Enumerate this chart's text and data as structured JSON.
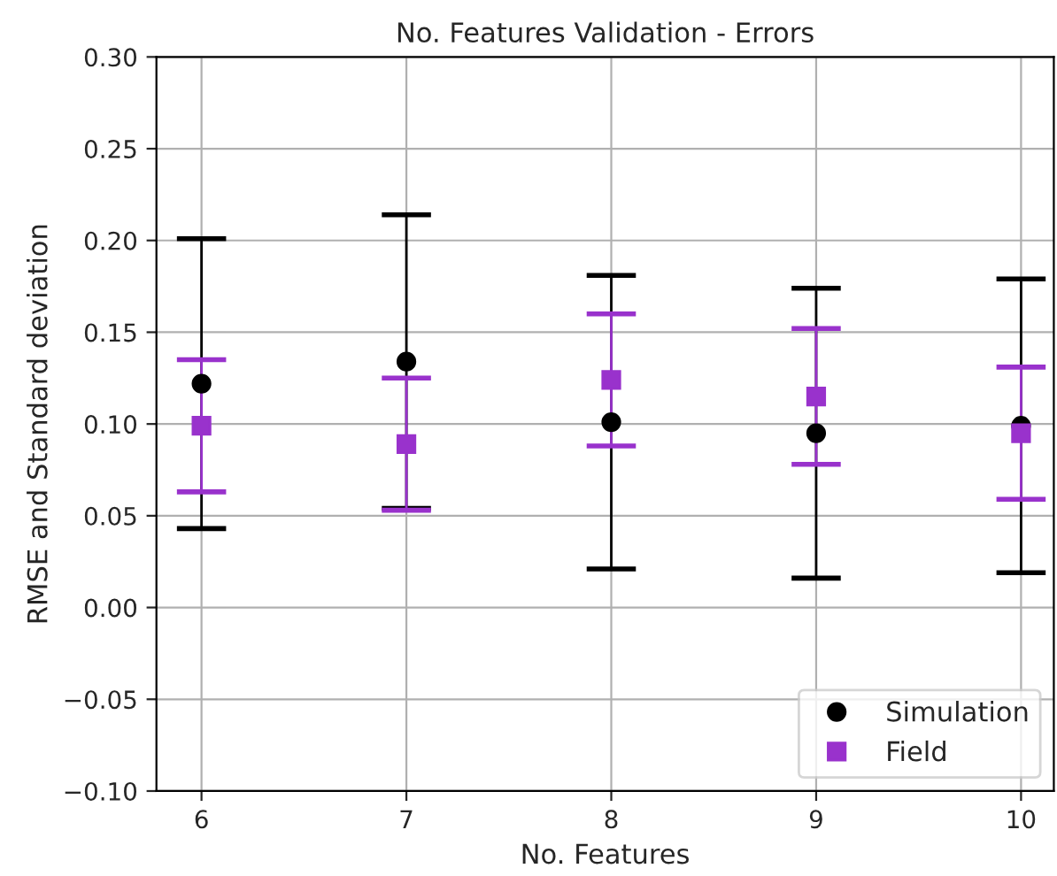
{
  "chart_data": {
    "type": "scatter",
    "title": "No. Features Validation - Errors",
    "xlabel": "No. Features",
    "ylabel": "RMSE and Standard deviation",
    "x": [
      6,
      7,
      8,
      9,
      10
    ],
    "series": [
      {
        "name": "Simulation",
        "color": "#000000",
        "marker": "circle",
        "values": [
          0.122,
          0.134,
          0.101,
          0.095,
          0.099
        ],
        "errors": [
          0.079,
          0.08,
          0.08,
          0.079,
          0.08
        ]
      },
      {
        "name": "Field",
        "color": "#9932cc",
        "marker": "square",
        "values": [
          0.099,
          0.089,
          0.124,
          0.115,
          0.095
        ],
        "errors": [
          0.036,
          0.036,
          0.036,
          0.037,
          0.036
        ]
      }
    ],
    "xlim": [
      5.78,
      10.16
    ],
    "xticks": [
      6,
      7,
      8,
      9,
      10
    ],
    "ylim": [
      -0.1,
      0.3
    ],
    "yticks": [
      {
        "value": -0.1,
        "label": "−0.10"
      },
      {
        "value": -0.05,
        "label": "−0.05"
      },
      {
        "value": 0,
        "label": "0.00"
      },
      {
        "value": 0.05,
        "label": "0.05"
      },
      {
        "value": 0.1,
        "label": "0.10"
      },
      {
        "value": 0.15,
        "label": "0.15"
      },
      {
        "value": 0.2,
        "label": "0.20"
      },
      {
        "value": 0.25,
        "label": "0.25"
      },
      {
        "value": 0.3,
        "label": "0.30"
      }
    ],
    "grid": true,
    "legend": "bottom right"
  }
}
